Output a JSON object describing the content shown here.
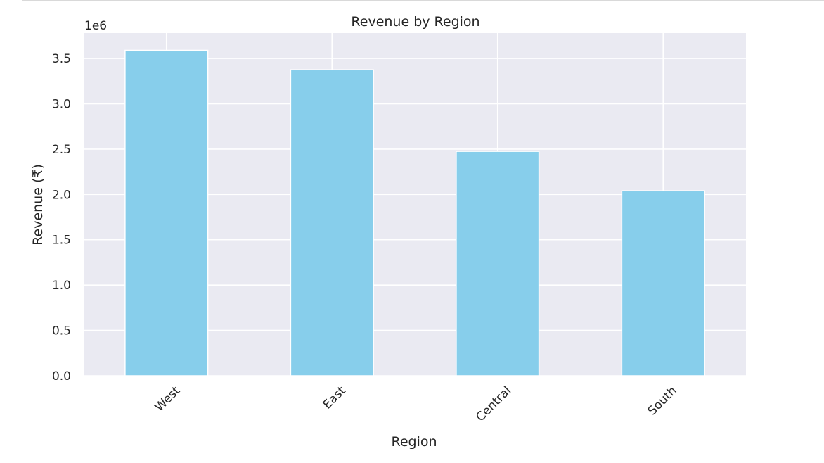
{
  "chart_data": {
    "type": "bar",
    "title": "Revenue by Region",
    "xlabel": "Region",
    "ylabel": "Revenue (₹)",
    "offset_label": "1e6",
    "categories": [
      "West",
      "East",
      "Central",
      "South"
    ],
    "values": [
      3.59,
      3.375,
      2.475,
      2.04
    ],
    "ylim": [
      0,
      3.78
    ],
    "yticks": [
      "0.0",
      "0.5",
      "1.0",
      "1.5",
      "2.0",
      "2.5",
      "3.0",
      "3.5"
    ],
    "grid": true,
    "bar_color": "#87ceeb",
    "background_color": "#eaeaf2",
    "grid_color": "#ffffff"
  }
}
